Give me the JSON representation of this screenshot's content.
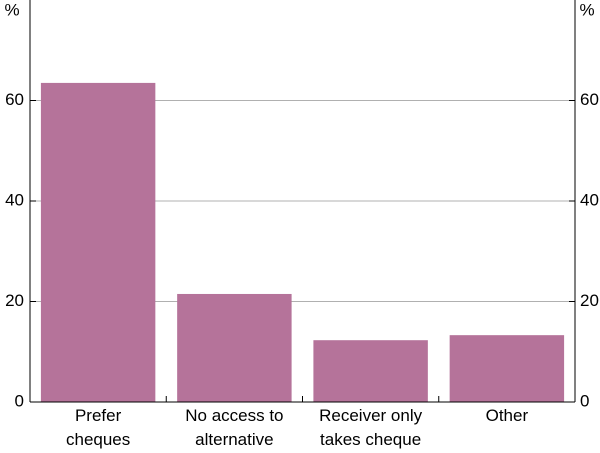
{
  "chart_data": {
    "type": "bar",
    "categories": [
      [
        "Prefer",
        "cheques"
      ],
      [
        "No access to",
        "alternative"
      ],
      [
        "Receiver only",
        "takes cheque"
      ],
      [
        "Other"
      ]
    ],
    "values": [
      63.5,
      21.5,
      12.3,
      13.3
    ],
    "color": "#b5739a",
    "y_unit": "%",
    "ylim": [
      0,
      80
    ],
    "yticks": [
      0,
      20,
      40,
      60
    ],
    "grid": true
  }
}
